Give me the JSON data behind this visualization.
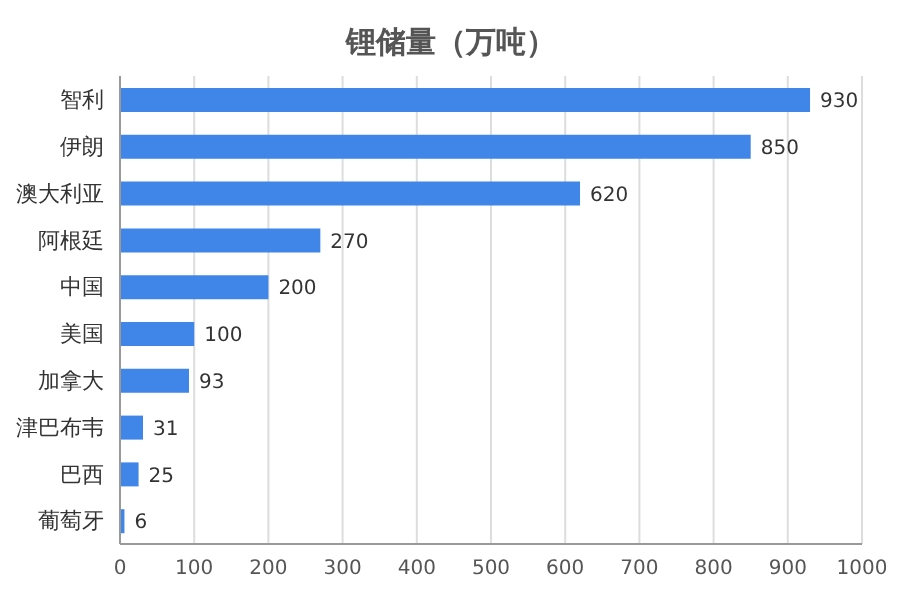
{
  "chart_data": {
    "type": "bar",
    "orientation": "horizontal",
    "title": "锂储量（万吨）",
    "categories": [
      "智利",
      "伊朗",
      "澳大利亚",
      "阿根廷",
      "中国",
      "美国",
      "加拿大",
      "津巴布韦",
      "巴西",
      "葡萄牙"
    ],
    "values": [
      930,
      850,
      620,
      270,
      200,
      100,
      93,
      31,
      25,
      6
    ],
    "color": "#3f86e8",
    "xlim": [
      0,
      1000
    ],
    "xticks": [
      0,
      100,
      200,
      300,
      400,
      500,
      600,
      700,
      800,
      900,
      1000
    ],
    "grid": "x",
    "data_labels": true
  }
}
